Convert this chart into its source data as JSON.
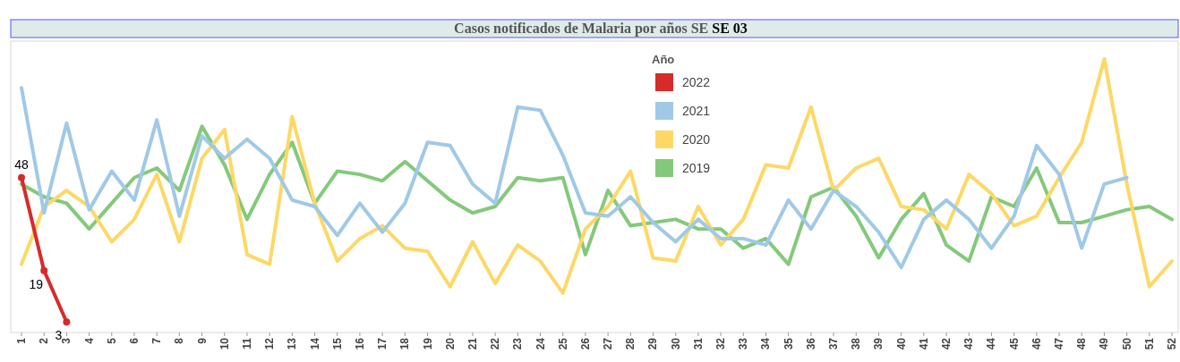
{
  "chart_data": {
    "type": "line",
    "title": "Casos notificados de Malaria por años SE",
    "subtitle": "SE 03",
    "legend_title": "Año",
    "legend": "top",
    "tick_labels": "x",
    "ylim": [
      0,
      90
    ],
    "categories": [
      "1",
      "2",
      "3",
      "4",
      "5",
      "6",
      "7",
      "8",
      "9",
      "10",
      "11",
      "12",
      "13",
      "14",
      "15",
      "16",
      "17",
      "18",
      "19",
      "20",
      "21",
      "22",
      "23",
      "24",
      "25",
      "26",
      "27",
      "28",
      "29",
      "30",
      "31",
      "32",
      "33",
      "34",
      "35",
      "36",
      "37",
      "38",
      "39",
      "40",
      "41",
      "42",
      "43",
      "44",
      "45",
      "46",
      "47",
      "48",
      "49",
      "50",
      "51",
      "52"
    ],
    "series": [
      {
        "name": "2022",
        "color": "#d62b2b",
        "marker": "circle",
        "value_labels": [
          "48",
          "19",
          "3",
          null,
          null,
          null,
          null,
          null,
          null,
          null,
          null,
          null,
          null,
          null,
          null,
          null,
          null,
          null,
          null,
          null,
          null,
          null,
          null,
          null,
          null,
          null,
          null,
          null,
          null,
          null,
          null,
          null,
          null,
          null,
          null,
          null,
          null,
          null,
          null,
          null,
          null,
          null,
          null,
          null,
          null,
          null,
          null,
          null,
          null,
          null,
          null,
          null
        ],
        "values": [
          48,
          19,
          3,
          null,
          null,
          null,
          null,
          null,
          null,
          null,
          null,
          null,
          null,
          null,
          null,
          null,
          null,
          null,
          null,
          null,
          null,
          null,
          null,
          null,
          null,
          null,
          null,
          null,
          null,
          null,
          null,
          null,
          null,
          null,
          null,
          null,
          null,
          null,
          null,
          null,
          null,
          null,
          null,
          null,
          null,
          null,
          null,
          null,
          null,
          null,
          null,
          null
        ]
      },
      {
        "name": "2021",
        "color": "#a0c9e7",
        "marker": "none",
        "values": [
          76,
          37,
          65,
          38,
          50,
          41,
          66,
          36,
          61,
          54,
          60,
          54,
          41,
          39,
          30,
          40,
          31,
          40,
          59,
          58,
          46,
          40,
          70,
          69,
          55,
          37,
          36,
          42,
          34,
          28,
          35,
          29,
          29,
          27,
          41,
          32,
          44,
          39,
          31,
          20,
          35,
          41,
          35,
          26,
          36,
          58,
          49,
          26,
          46,
          48,
          null,
          null
        ]
      },
      {
        "name": "2020",
        "color": "#fdd866",
        "marker": "none",
        "values": [
          21,
          39,
          44,
          39,
          28,
          35,
          49,
          28,
          54,
          63,
          24,
          21,
          67,
          40,
          22,
          29,
          33,
          26,
          25,
          14,
          28,
          15,
          27,
          22,
          12,
          32,
          39,
          50,
          23,
          22,
          39,
          27,
          35,
          52,
          51,
          70,
          44,
          51,
          54,
          39,
          38,
          32,
          49,
          43,
          33,
          36,
          48,
          59,
          85,
          46,
          14,
          22
        ]
      },
      {
        "name": "2019",
        "color": "#84c97b",
        "marker": "none",
        "values": [
          46,
          42,
          40,
          32,
          40,
          48,
          51,
          44,
          64,
          52,
          35,
          49,
          59,
          40,
          50,
          49,
          47,
          53,
          47,
          41,
          37,
          39,
          48,
          47,
          48,
          24,
          44,
          33,
          34,
          35,
          32,
          32,
          26,
          29,
          21,
          42,
          45,
          36,
          23,
          35,
          43,
          27,
          22,
          42,
          39,
          51,
          34,
          34,
          36,
          38,
          39,
          35
        ]
      }
    ]
  }
}
